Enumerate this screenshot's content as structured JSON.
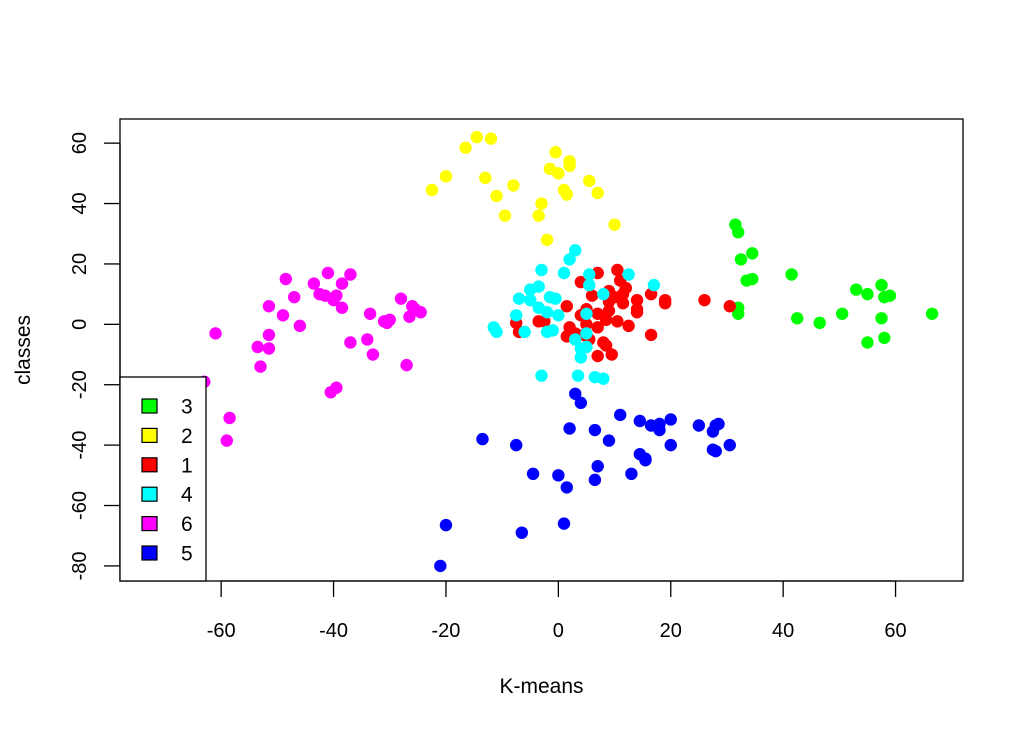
{
  "chart_data": {
    "type": "scatter",
    "title": "",
    "xlabel": "K-means",
    "ylabel": "classes",
    "xlim": [
      -78,
      72
    ],
    "ylim": [
      -85,
      68
    ],
    "xticks": [
      -60,
      -40,
      -20,
      0,
      20,
      40,
      60
    ],
    "yticks": [
      -80,
      -60,
      -40,
      -20,
      0,
      20,
      40,
      60
    ],
    "grid": false,
    "legend_position": "bottom-left",
    "series": [
      {
        "name": "3",
        "color": "#00ff00",
        "points": [
          [
            31.5,
            33
          ],
          [
            32,
            30.5
          ],
          [
            32.5,
            21.5
          ],
          [
            34.5,
            23.5
          ],
          [
            33.5,
            14.5
          ],
          [
            34.5,
            15
          ],
          [
            41.5,
            16.5
          ],
          [
            32,
            5.5
          ],
          [
            32,
            3.5
          ],
          [
            42.5,
            2
          ],
          [
            46.5,
            0.5
          ],
          [
            50.5,
            3.5
          ],
          [
            53,
            11.5
          ],
          [
            55,
            10
          ],
          [
            57.5,
            13
          ],
          [
            58,
            9
          ],
          [
            59,
            9.5
          ],
          [
            57.5,
            2
          ],
          [
            58,
            -4.5
          ],
          [
            55,
            -6
          ],
          [
            66.5,
            3.5
          ]
        ]
      },
      {
        "name": "2",
        "color": "#ffff00",
        "points": [
          [
            -14.5,
            62
          ],
          [
            -12,
            61.5
          ],
          [
            -16.5,
            58.5
          ],
          [
            -0.5,
            57
          ],
          [
            2,
            54
          ],
          [
            2,
            52.5
          ],
          [
            -1.5,
            51.5
          ],
          [
            0,
            50
          ],
          [
            5.5,
            47.5
          ],
          [
            -13,
            48.5
          ],
          [
            -20,
            49
          ],
          [
            -22.5,
            44.5
          ],
          [
            -8,
            46
          ],
          [
            7,
            43.5
          ],
          [
            1,
            44.5
          ],
          [
            1.5,
            43
          ],
          [
            -11,
            42.5
          ],
          [
            -3,
            40
          ],
          [
            -9.5,
            36
          ],
          [
            -3.5,
            36
          ],
          [
            10,
            33
          ],
          [
            -2,
            28
          ]
        ]
      },
      {
        "name": "1",
        "color": "#ff0000",
        "points": [
          [
            10.5,
            18
          ],
          [
            7,
            17
          ],
          [
            4,
            14
          ],
          [
            11,
            14.5
          ],
          [
            12,
            12
          ],
          [
            9,
            11
          ],
          [
            10,
            9
          ],
          [
            11.5,
            10
          ],
          [
            16.5,
            10
          ],
          [
            19,
            8
          ],
          [
            14,
            8
          ],
          [
            19,
            7
          ],
          [
            9,
            7.5
          ],
          [
            11.5,
            7
          ],
          [
            6,
            9.5
          ],
          [
            14,
            5
          ],
          [
            14,
            4
          ],
          [
            9,
            4.5
          ],
          [
            1.5,
            6
          ],
          [
            5,
            5
          ],
          [
            26,
            8
          ],
          [
            30.5,
            6
          ],
          [
            4,
            3
          ],
          [
            7,
            3.5
          ],
          [
            8.5,
            1.5
          ],
          [
            10.5,
            1
          ],
          [
            12.5,
            -0.5
          ],
          [
            5,
            0
          ],
          [
            7,
            -1
          ],
          [
            -7.5,
            0.5
          ],
          [
            -7,
            -2.5
          ],
          [
            -3.5,
            1
          ],
          [
            -2.5,
            1
          ],
          [
            2,
            -1
          ],
          [
            3,
            -3
          ],
          [
            4.5,
            -3.5
          ],
          [
            1.5,
            -4
          ],
          [
            5.5,
            -5
          ],
          [
            8,
            -6
          ],
          [
            8.5,
            -7
          ],
          [
            7,
            -10.5
          ],
          [
            9.5,
            -10
          ],
          [
            16.5,
            -3.5
          ]
        ]
      },
      {
        "name": "4",
        "color": "#00ffff",
        "points": [
          [
            3,
            24.5
          ],
          [
            2,
            21.5
          ],
          [
            1,
            17
          ],
          [
            -3,
            18
          ],
          [
            5.5,
            16.5
          ],
          [
            12.5,
            16.5
          ],
          [
            17,
            13
          ],
          [
            5.5,
            13
          ],
          [
            -3.5,
            12.5
          ],
          [
            -5,
            11.5
          ],
          [
            -1.5,
            9
          ],
          [
            -0.5,
            8.5
          ],
          [
            -7,
            8.5
          ],
          [
            -5,
            8
          ],
          [
            8,
            10
          ],
          [
            -3.5,
            5.5
          ],
          [
            -2,
            4
          ],
          [
            5,
            3.5
          ],
          [
            0,
            3
          ],
          [
            -7.5,
            3
          ],
          [
            -11.5,
            -1
          ],
          [
            -11,
            -2.5
          ],
          [
            -6,
            -2.5
          ],
          [
            -2,
            -2.5
          ],
          [
            5,
            -3
          ],
          [
            3,
            -5
          ],
          [
            -1,
            -2
          ],
          [
            5,
            -7.5
          ],
          [
            4,
            -8
          ],
          [
            4,
            -11
          ],
          [
            -3,
            -17
          ],
          [
            3.5,
            -17
          ],
          [
            6.5,
            -17.5
          ],
          [
            8,
            -18
          ]
        ]
      },
      {
        "name": "6",
        "color": "#ff00ff",
        "points": [
          [
            -41,
            17
          ],
          [
            -37,
            16.5
          ],
          [
            -48.5,
            15
          ],
          [
            -43.5,
            13.5
          ],
          [
            -38.5,
            13.5
          ],
          [
            -42.5,
            10
          ],
          [
            -41.5,
            9.5
          ],
          [
            -47,
            9
          ],
          [
            -40,
            8
          ],
          [
            -39.5,
            9.5
          ],
          [
            -28,
            8.5
          ],
          [
            -51.5,
            6
          ],
          [
            -38.5,
            5.5
          ],
          [
            -33.5,
            3.5
          ],
          [
            -49,
            3
          ],
          [
            -26,
            6
          ],
          [
            -25.5,
            5
          ],
          [
            -24.5,
            4
          ],
          [
            -26.5,
            2.5
          ],
          [
            -31,
            1
          ],
          [
            -30,
            1.5
          ],
          [
            -30.5,
            0.5
          ],
          [
            -46,
            -0.5
          ],
          [
            -61,
            -3
          ],
          [
            -51.5,
            -3.5
          ],
          [
            -34,
            -5
          ],
          [
            -37,
            -6
          ],
          [
            -53.5,
            -7.5
          ],
          [
            -51.5,
            -8
          ],
          [
            -33,
            -10
          ],
          [
            -53,
            -14
          ],
          [
            -27,
            -13.5
          ],
          [
            -63,
            -19
          ],
          [
            -39.5,
            -21
          ],
          [
            -40.5,
            -22.5
          ],
          [
            -58.5,
            -31
          ],
          [
            -59,
            -38.5
          ]
        ]
      },
      {
        "name": "5",
        "color": "#0000ff",
        "points": [
          [
            3,
            -23
          ],
          [
            4,
            -26
          ],
          [
            11,
            -30
          ],
          [
            14.5,
            -32
          ],
          [
            16.5,
            -33.5
          ],
          [
            18,
            -33
          ],
          [
            18,
            -35
          ],
          [
            20,
            -31.5
          ],
          [
            25,
            -33.5
          ],
          [
            28,
            -33.5
          ],
          [
            28.5,
            -33
          ],
          [
            27.5,
            -35.5
          ],
          [
            2,
            -34.5
          ],
          [
            6.5,
            -35
          ],
          [
            9,
            -38.5
          ],
          [
            -13.5,
            -38
          ],
          [
            -7.5,
            -40
          ],
          [
            20,
            -40
          ],
          [
            30.5,
            -40
          ],
          [
            28,
            -42
          ],
          [
            27.5,
            -41.5
          ],
          [
            14.5,
            -43
          ],
          [
            15.5,
            -44.5
          ],
          [
            15.5,
            -45
          ],
          [
            7,
            -47
          ],
          [
            13,
            -49.5
          ],
          [
            -4.5,
            -49.5
          ],
          [
            0,
            -50
          ],
          [
            1.5,
            -54
          ],
          [
            6.5,
            -51.5
          ],
          [
            1,
            -66
          ],
          [
            -20,
            -66.5
          ],
          [
            -6.5,
            -69
          ],
          [
            -21,
            -80
          ]
        ]
      }
    ]
  }
}
